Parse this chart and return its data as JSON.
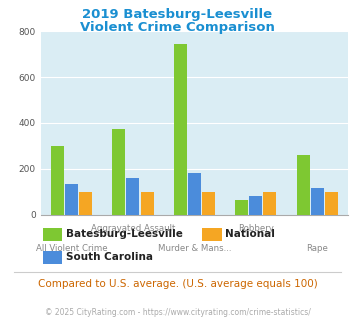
{
  "title_line1": "2019 Batesburg-Leesville",
  "title_line2": "Violent Crime Comparison",
  "title_color": "#1a8fd1",
  "categories": [
    "All Violent Crime",
    "Aggravated Assault",
    "Murder & Mans...",
    "Robbery",
    "Rape"
  ],
  "top_labels": [
    "",
    "Aggravated Assault",
    "",
    "Robbery",
    ""
  ],
  "bot_labels": [
    "All Violent Crime",
    "",
    "Murder & Mans...",
    "",
    "Rape"
  ],
  "series": {
    "Batesburg-Leesville": [
      300,
      375,
      745,
      65,
      260
    ],
    "South Carolina": [
      135,
      160,
      180,
      80,
      115
    ],
    "National": [
      100,
      100,
      100,
      100,
      100
    ]
  },
  "colors": {
    "Batesburg-Leesville": "#7ec832",
    "South Carolina": "#4b8cdb",
    "National": "#f5a623"
  },
  "ylim": [
    0,
    800
  ],
  "yticks": [
    0,
    200,
    400,
    600,
    800
  ],
  "bg_color": "#daedf4",
  "grid_color": "#ffffff",
  "subtitle": "Compared to U.S. average. (U.S. average equals 100)",
  "subtitle_color": "#cc6600",
  "footer": "© 2025 CityRating.com - https://www.cityrating.com/crime-statistics/",
  "footer_color": "#aaaaaa",
  "bar_width": 0.23
}
